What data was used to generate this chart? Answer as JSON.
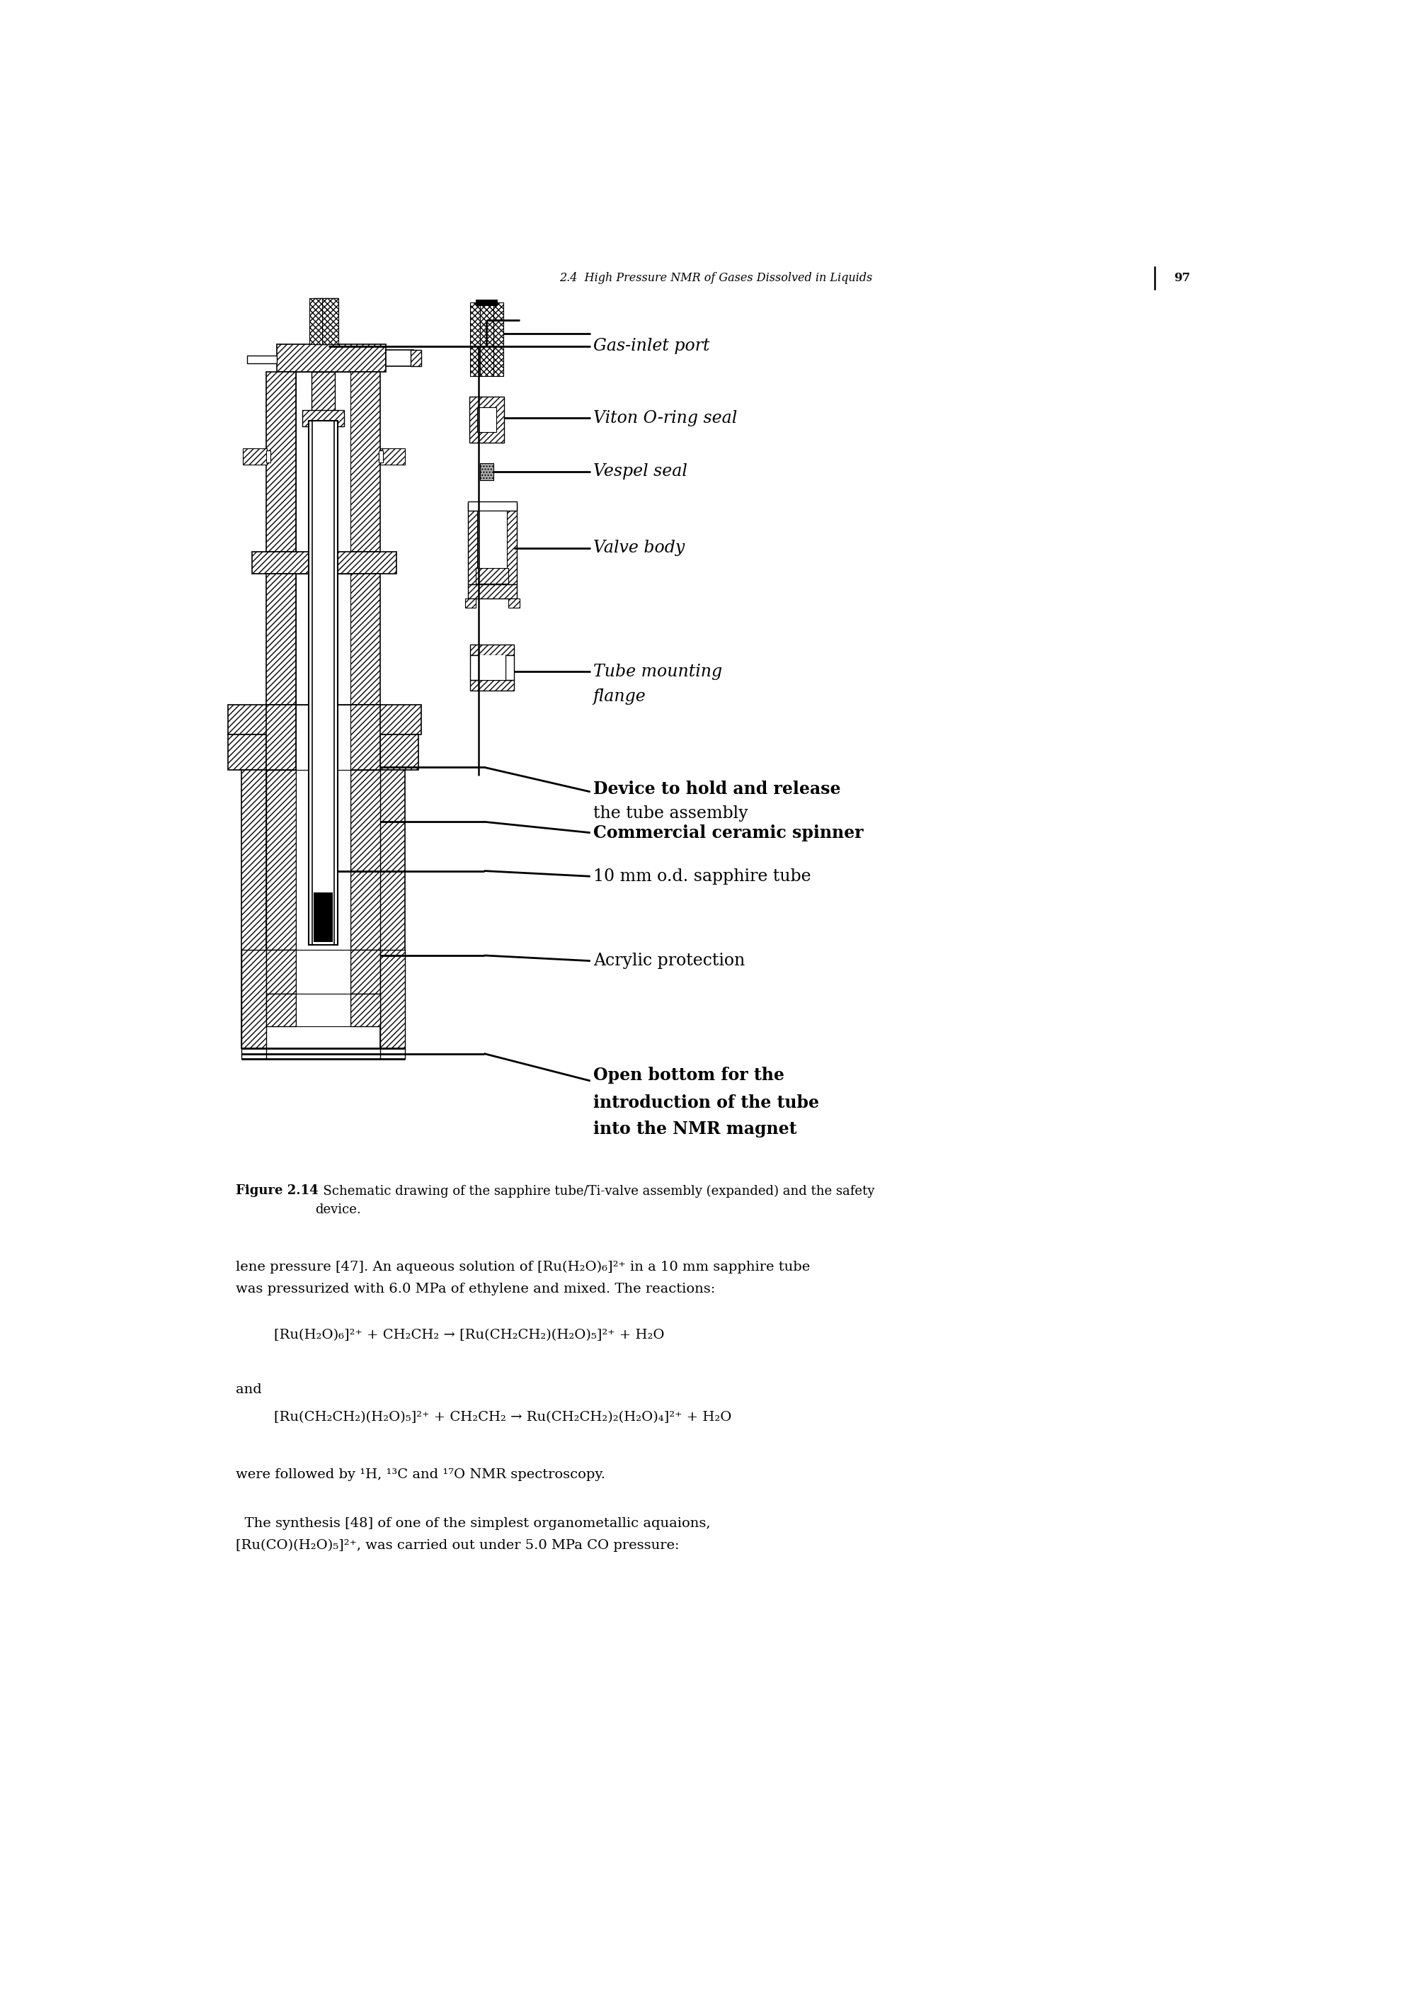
{
  "page_header": "2.4  High Pressure NMR of Gases Dissolved in Liquids",
  "page_number": "97",
  "labels": [
    "Gas-inlet port",
    "Viton O-ring seal",
    "Vespel seal",
    "Valve body",
    "Tube mounting\nflange",
    "Device to hold and release\nthe tube assembly",
    "Commercial ceramic spinner",
    "10 mm o.d. sapphire tube",
    "Acrylic protection",
    "Open bottom for the\nintroduction of the tube\ninto the NMR magnet"
  ],
  "fig_bold": "Figure 2.14",
  "fig_text": "   Schematic drawing of the sapphire tube/Ti-valve assembly (expanded) and the safety device.",
  "body1": "lene pressure [47]. An aqueous solution of [Ru(H",
  "body1_rest": " in a 10 mm sapphire tube",
  "body2": "was pressurized with 6.0 MPa of ethylene and mixed. The reactions:",
  "eq1": "[Ru(H₂O)₆]²⁺ + CH₂CH₂ → [Ru(CH₂CH₂)(H₂O)₅]²⁺ + H₂O",
  "eq2": "[Ru(CH₂CH₂)(H₂O)₅]²⁺ + CH₂CH₂ → Ru(CH₂CH₂)₂(H₂O)₄]²⁺ + H₂O",
  "text_and": "and",
  "text_followed": "were followed by ¹H, ¹³C and ¹⁷O NMR spectroscopy.",
  "text_synthesis": "  The synthesis [48] of one of the simplest organometallic aquaions,",
  "text_synthesis2": "[Ru(CO)(H₂O)₅]²⁺, was carried out under 5.0 MPa CO pressure:",
  "background_color": "#ffffff"
}
